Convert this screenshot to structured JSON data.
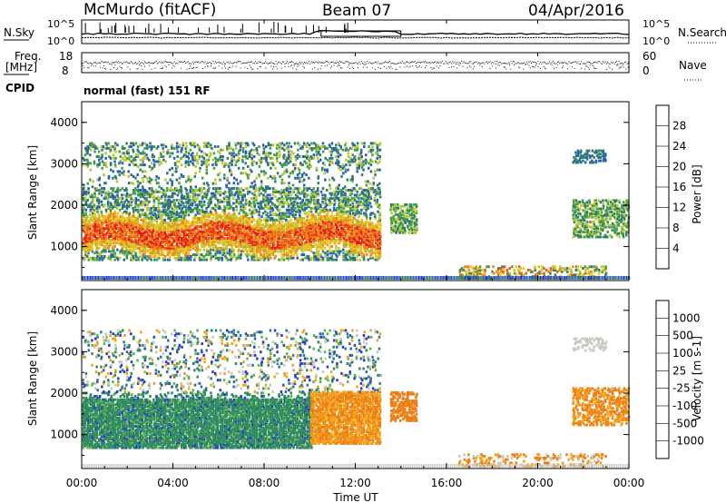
{
  "header": {
    "station": "McMurdo (fitACF)",
    "beam": "Beam 07",
    "date": "04/Apr/2016"
  },
  "summary": {
    "n_sky_label": "N.Sky",
    "n_search_label": "N.Search",
    "freq_label_1": "Freq.",
    "freq_label_2": "[MHz]",
    "nave_label": "Nave",
    "cpid_label": "CPID",
    "cpid_text": "normal (fast) 151 RF",
    "sky_ticks": [
      "10^5",
      "10^0"
    ],
    "search_ticks": [
      "10^5",
      "10^0"
    ],
    "freq_ticks": [
      "18",
      "8"
    ],
    "nave_ticks": [
      "60",
      "0"
    ]
  },
  "colors": {
    "power_scale": [
      "#1e22e6",
      "#2a5db4",
      "#2f7f66",
      "#4aa04a",
      "#b8c832",
      "#f0c21e",
      "#ee8a12",
      "#ec5a12",
      "#e61a14"
    ],
    "velocity_scale": [
      "#2a3cc8",
      "#2e6ea8",
      "#2f8a5f",
      "#62b348",
      "#c8c8c0",
      "#f2a218",
      "#ee7d12",
      "#ea5a14",
      "#e2191c"
    ]
  },
  "chart_data": [
    {
      "type": "heatmap",
      "title": "Power",
      "xlabel": "",
      "ylabel": "Slant Range [km]",
      "xlim": [
        "00:00",
        "00:00"
      ],
      "ylim": [
        180,
        4500
      ],
      "y_ticks": [
        "1000",
        "2000",
        "3000",
        "4000"
      ],
      "x_ticks": [
        "00:00",
        "04:00",
        "08:00",
        "12:00",
        "16:00",
        "20:00",
        "00:00"
      ],
      "colorbar": {
        "label": "Power [dB]",
        "ticks": [
          "4",
          "8",
          "12",
          "16",
          "20",
          "24",
          "28"
        ],
        "range": [
          0,
          30
        ]
      },
      "regions": [
        {
          "hours": [
            0,
            13
          ],
          "range_km": [
            800,
            1600
          ],
          "level": "high"
        },
        {
          "hours": [
            0,
            13
          ],
          "range_km": [
            1600,
            2400
          ],
          "level": "medium"
        },
        {
          "hours": [
            0,
            13
          ],
          "range_km": [
            2900,
            3500
          ],
          "level": "low"
        },
        {
          "hours": [
            13.5,
            14.6
          ],
          "range_km": [
            1300,
            2000
          ],
          "level": "medium"
        },
        {
          "hours": [
            17,
            22.5
          ],
          "range_km": [
            200,
            500
          ],
          "level": "medium"
        },
        {
          "hours": [
            21.5,
            24
          ],
          "range_km": [
            1200,
            2100
          ],
          "level": "medium"
        },
        {
          "hours": [
            21.5,
            23
          ],
          "range_km": [
            3000,
            3300
          ],
          "level": "low"
        }
      ]
    },
    {
      "type": "heatmap",
      "title": "Velocity",
      "xlabel": "Time UT",
      "ylabel": "Slant Range [km]",
      "xlim": [
        "00:00",
        "00:00"
      ],
      "ylim": [
        180,
        4500
      ],
      "y_ticks": [
        "1000",
        "2000",
        "3000",
        "4000"
      ],
      "x_ticks": [
        "00:00",
        "04:00",
        "08:00",
        "12:00",
        "16:00",
        "20:00",
        "00:00"
      ],
      "colorbar": {
        "label": "Velocity [m s-1]",
        "ticks": [
          "1000",
          "500",
          "100",
          "25",
          "-25",
          "-100",
          "-500",
          "-1000"
        ]
      },
      "regions": [
        {
          "hours": [
            0,
            10
          ],
          "range_km": [
            700,
            1900
          ],
          "level": "+100..+25"
        },
        {
          "hours": [
            10,
            13
          ],
          "range_km": [
            800,
            1900
          ],
          "level": "-100..-500"
        },
        {
          "hours": [
            13.5,
            14.6
          ],
          "range_km": [
            1300,
            2000
          ],
          "level": "-100..-500"
        },
        {
          "hours": [
            21.5,
            24
          ],
          "range_km": [
            1200,
            2100
          ],
          "level": "-100..-500"
        }
      ]
    }
  ]
}
